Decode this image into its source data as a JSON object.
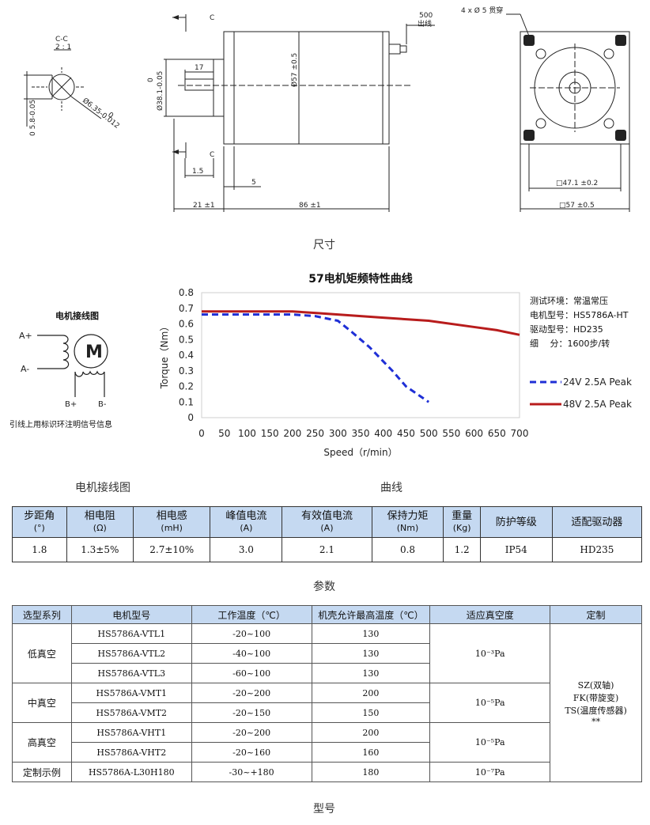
{
  "drawing": {
    "section_label": "C-C",
    "section_scale": "2 : 1",
    "section_mark": "C",
    "dim_shaft_flat": "0\n5.8-0.05",
    "dim_shaft_dia": "Ø6.35-0.012",
    "dim_shaft_dia_top": "0",
    "dim_boss_dia": "Ø38.1-0.05",
    "dim_boss_top": "0",
    "dim_body_dia": "Ø57 ±0.5",
    "dim_17": "17",
    "dim_1_5": "1.5",
    "dim_5": "5",
    "dim_21": "21 ±1",
    "dim_86": "86 ±1",
    "dim_500": "500",
    "lead_out": "出线",
    "holes": "4 x Ø 5 贯穿",
    "dim_47": "□47.1 ±0.2",
    "dim_57sq": "□57 ±0.5"
  },
  "captions": {
    "size": "尺寸",
    "wiring": "电机接线图",
    "curve": "曲线",
    "params": "参数",
    "model": "型号"
  },
  "wiring": {
    "title": "电机接线图",
    "motor": "M",
    "a_plus": "A+",
    "a_minus": "A-",
    "b_plus": "B+",
    "b_minus": "B-",
    "note": "引线上用标识环注明信号信息"
  },
  "chart_data": {
    "type": "line",
    "title": "57电机矩频特性曲线",
    "xlabel": "Speed（r/min）",
    "ylabel": "Torque（Nm）",
    "xlim": [
      0,
      700
    ],
    "ylim": [
      0,
      0.8
    ],
    "x_ticks": [
      "0",
      "50",
      "100",
      "150",
      "200",
      "250",
      "300",
      "350",
      "400",
      "450",
      "500",
      "550",
      "600",
      "650",
      "700"
    ],
    "y_ticks": [
      "0",
      "0.1",
      "0.2",
      "0.3",
      "0.4",
      "0.5",
      "0.6",
      "0.7",
      "0.8"
    ],
    "legend_position": "right",
    "series": [
      {
        "name": "24V 2.5A Peak",
        "color": "#1f2fd6",
        "dash": true,
        "x": [
          0,
          100,
          200,
          250,
          300,
          330,
          370,
          420,
          450,
          500
        ],
        "y": [
          0.66,
          0.66,
          0.66,
          0.65,
          0.62,
          0.55,
          0.45,
          0.3,
          0.2,
          0.1
        ]
      },
      {
        "name": "48V 2.5A Peak",
        "color": "#b81c1c",
        "dash": false,
        "x": [
          0,
          100,
          200,
          250,
          300,
          400,
          500,
          600,
          650,
          700
        ],
        "y": [
          0.68,
          0.68,
          0.68,
          0.67,
          0.66,
          0.64,
          0.62,
          0.58,
          0.56,
          0.53
        ]
      }
    ],
    "info": [
      "测试环境：常温常压",
      "电机型号：HS5786A-HT",
      "驱动型号：HD235",
      "细　 分：1600步/转"
    ]
  },
  "params": {
    "headers": [
      [
        "步距角",
        "(°)"
      ],
      [
        "相电阻",
        "(Ω)"
      ],
      [
        "相电感",
        "(mH)"
      ],
      [
        "峰值电流",
        "(A)"
      ],
      [
        "有效值电流",
        "(A)"
      ],
      [
        "保持力矩",
        "(Nm)"
      ],
      [
        "重量",
        "(Kg)"
      ],
      [
        "防护等级",
        ""
      ],
      [
        "适配驱动器",
        ""
      ]
    ],
    "values": [
      "1.8",
      "1.3±5%",
      "2.7±10%",
      "3.0",
      "2.1",
      "0.8",
      "1.2",
      "IP54",
      "HD235"
    ]
  },
  "models": {
    "headers": [
      "选型系列",
      "电机型号",
      "工作温度（℃）",
      "机壳允许最高温度（℃）",
      "适应真空度",
      "定制"
    ],
    "groups": [
      {
        "series": "低真空",
        "vacuum": "10⁻³Pa",
        "rows": [
          [
            "HS5786A-VTL1",
            "-20~100",
            "130"
          ],
          [
            "HS5786A-VTL2",
            "-40~100",
            "130"
          ],
          [
            "HS5786A-VTL3",
            "-60~100",
            "130"
          ]
        ]
      },
      {
        "series": "中真空",
        "vacuum": "10⁻⁵Pa",
        "rows": [
          [
            "HS5786A-VMT1",
            "-20~200",
            "200"
          ],
          [
            "HS5786A-VMT2",
            "-20~150",
            "150"
          ]
        ]
      },
      {
        "series": "高真空",
        "vacuum": "10⁻⁵Pa",
        "rows": [
          [
            "HS5786A-VHT1",
            "-20~200",
            "200"
          ],
          [
            "HS5786A-VHT2",
            "-20~160",
            "160"
          ]
        ]
      },
      {
        "series": "定制示例",
        "vacuum": "10⁻⁷Pa",
        "rows": [
          [
            "HS5786A-L30H180",
            "-30~+180",
            "180"
          ]
        ]
      }
    ],
    "custom": [
      "SZ(双轴)",
      "FK(带旋变)",
      "TS(温度传感器)",
      "**"
    ]
  }
}
